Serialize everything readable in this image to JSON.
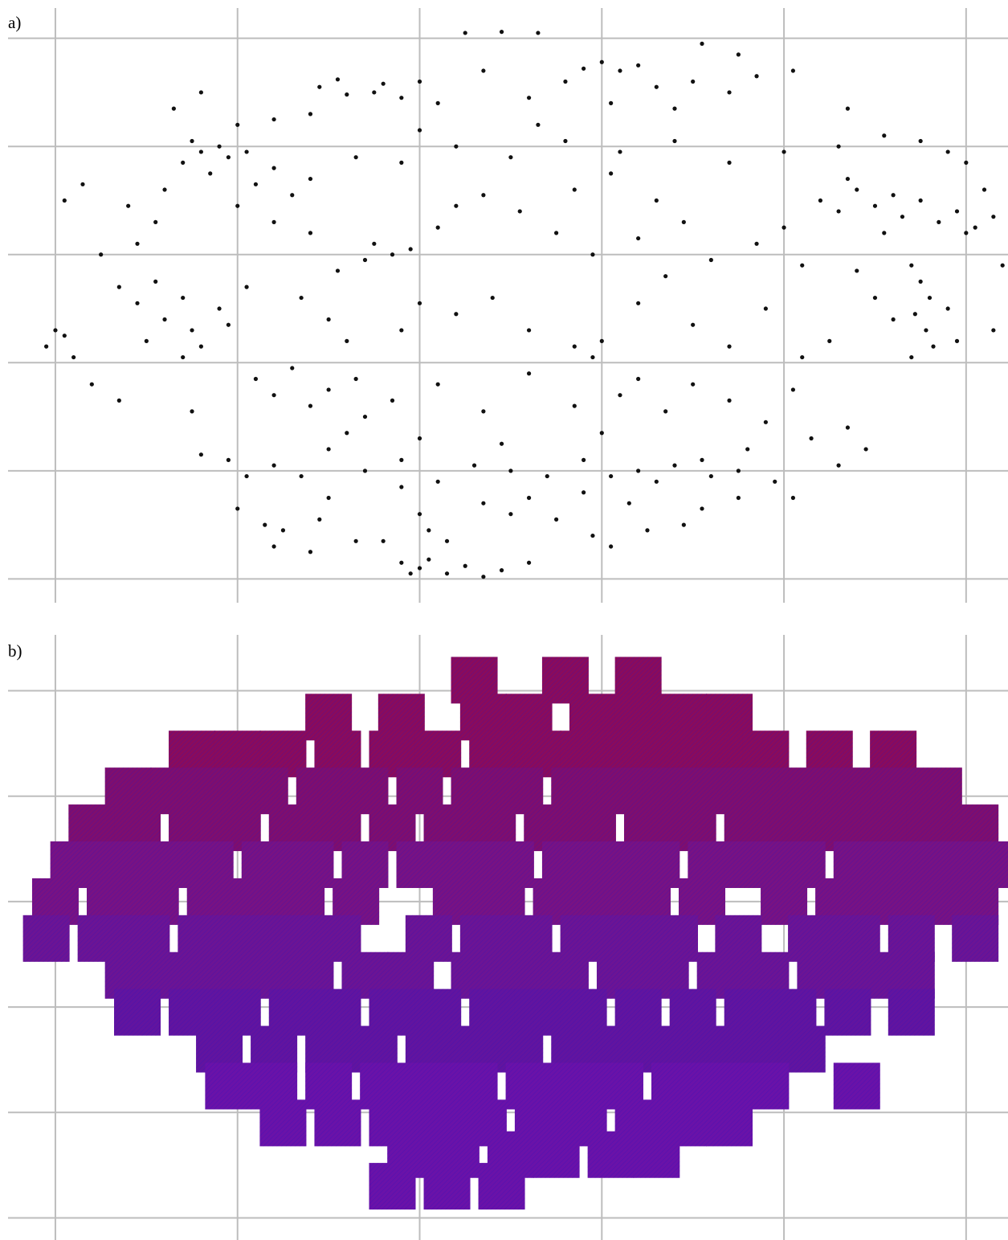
{
  "chart_data": [
    {
      "type": "scatter",
      "label": "a)",
      "color": "#111111",
      "grid": true,
      "xlim": [
        -0.26,
        5.23
      ],
      "ylim": [
        -0.22,
        5.28
      ],
      "xticks": [
        0,
        1,
        2,
        3,
        4,
        5
      ],
      "yticks": [
        0,
        1,
        2,
        3,
        4,
        5
      ],
      "x": [
        2.25,
        2.45,
        2.65,
        1.45,
        1.6,
        1.75,
        1.9,
        2.0,
        1.55,
        1.8,
        2.1,
        2.35,
        2.9,
        3.0,
        3.1,
        3.2,
        2.8,
        3.3,
        3.5,
        3.7,
        2.6,
        3.05,
        3.4,
        3.85,
        0.7,
        0.8,
        0.9,
        0.95,
        1.05,
        0.85,
        1.2,
        1.4,
        0.6,
        1.1,
        0.75,
        1.3,
        1.65,
        1.9,
        2.2,
        2.5,
        2.8,
        3.1,
        3.4,
        3.7,
        4.0,
        4.3,
        2.0,
        2.65,
        4.2,
        4.3,
        4.4,
        4.5,
        4.6,
        4.65,
        4.75,
        4.85,
        4.95,
        5.05,
        4.35,
        4.55,
        0.25,
        0.45,
        0.55,
        0.4,
        1.75,
        1.85,
        1.95,
        1.7,
        2.1,
        2.2,
        2.35,
        2.55,
        2.75,
        2.95,
        3.2,
        3.45,
        3.6,
        3.85,
        4.0,
        4.1,
        3.3,
        2.85,
        3.05,
        1.2,
        0.35,
        0.45,
        0.55,
        0.6,
        0.7,
        0.75,
        0.8,
        0.7,
        0.9,
        0.95,
        0.5,
        1.05,
        4.7,
        4.75,
        4.8,
        4.72,
        4.78,
        4.82,
        4.7,
        4.9,
        4.6,
        4.5,
        4.4,
        4.95,
        1.35,
        1.5,
        2.0,
        2.2,
        2.4,
        2.6,
        2.85,
        2.95,
        3.0,
        3.2,
        3.5,
        3.9,
        -0.05,
        0.05,
        0.1,
        0.0,
        0.2,
        0.35,
        4.25,
        4.1,
        5.0,
        5.15,
        5.2,
        5.15,
        1.1,
        1.2,
        1.3,
        1.4,
        1.5,
        1.65,
        1.7,
        1.85,
        2.1,
        2.35,
        2.6,
        3.1,
        3.35,
        3.5,
        3.7,
        3.9,
        4.15,
        4.3,
        4.35,
        4.45,
        3.2,
        2.85,
        0.8,
        0.75,
        0.95,
        1.05,
        1.2,
        1.35,
        1.5,
        1.7,
        1.9,
        2.1,
        2.3,
        2.5,
        2.7,
        2.9,
        3.05,
        3.2,
        3.3,
        3.4,
        3.55,
        3.6,
        3.75,
        3.8,
        1.6,
        2.0,
        2.45,
        3.0,
        1.0,
        1.15,
        1.25,
        1.65,
        1.8,
        2.05,
        2.15,
        2.5,
        2.35,
        2.75,
        2.95,
        3.25,
        3.45,
        3.55,
        2.0,
        1.45,
        3.15,
        2.6,
        1.9,
        1.5,
        2.9,
        3.75,
        3.95,
        4.05,
        1.9,
        2.0,
        2.05,
        2.15,
        2.25,
        2.35,
        2.45,
        1.95,
        1.4,
        2.6,
        3.05,
        1.2,
        0.05,
        0.15,
        0.65,
        0.8,
        1.0,
        1.2,
        1.4,
        3.55,
        3.75,
        4.05,
        4.35,
        4.55,
        4.75,
        4.9,
        5.0,
        5.1,
        1.0,
        1.4,
        1.55,
        1.6,
        1.9,
        3.35,
        3.7,
        4.05
      ],
      "y": [
        5.05,
        5.06,
        5.05,
        4.55,
        4.48,
        4.5,
        4.45,
        4.6,
        4.62,
        4.58,
        4.4,
        4.7,
        4.72,
        4.78,
        4.7,
        4.75,
        4.6,
        4.55,
        4.6,
        4.5,
        4.45,
        4.4,
        4.35,
        4.65,
        3.85,
        3.95,
        4.0,
        3.9,
        3.95,
        3.75,
        3.8,
        3.7,
        3.6,
        3.65,
        4.05,
        3.55,
        3.9,
        3.85,
        4.0,
        3.9,
        4.05,
        3.95,
        4.05,
        3.85,
        3.95,
        4.0,
        4.15,
        4.2,
        3.5,
        3.4,
        3.6,
        3.45,
        3.55,
        3.35,
        3.5,
        3.3,
        3.4,
        3.25,
        3.7,
        3.2,
        3.0,
        3.1,
        3.3,
        3.45,
        3.1,
        3.0,
        3.05,
        2.95,
        3.25,
        3.45,
        3.55,
        3.4,
        3.2,
        3.0,
        3.15,
        3.3,
        2.95,
        3.1,
        3.25,
        2.9,
        3.5,
        3.6,
        3.75,
        3.3,
        2.7,
        2.55,
        2.75,
        2.4,
        2.6,
        2.3,
        2.15,
        2.05,
        2.5,
        2.35,
        2.2,
        2.7,
        2.9,
        2.75,
        2.6,
        2.45,
        2.3,
        2.15,
        2.05,
        2.5,
        2.4,
        2.6,
        2.85,
        2.2,
        2.6,
        2.4,
        2.55,
        2.45,
        2.6,
        2.3,
        2.15,
        2.05,
        2.2,
        2.55,
        2.35,
        2.5,
        2.15,
        2.25,
        2.05,
        2.3,
        1.8,
        1.65,
        2.2,
        2.05,
        3.2,
        3.35,
        2.9,
        2.3,
        1.85,
        1.7,
        1.95,
        1.6,
        1.75,
        1.85,
        1.5,
        1.65,
        1.8,
        1.55,
        1.9,
        1.7,
        1.55,
        1.8,
        1.65,
        1.45,
        1.3,
        1.05,
        1.4,
        1.2,
        1.85,
        1.6,
        1.15,
        1.55,
        1.1,
        0.95,
        1.05,
        0.95,
        1.2,
        1.0,
        1.1,
        0.9,
        1.05,
        1.0,
        0.95,
        1.1,
        0.95,
        1.0,
        0.9,
        1.05,
        1.1,
        0.95,
        1.0,
        1.2,
        1.35,
        1.3,
        1.25,
        1.35,
        0.65,
        0.5,
        0.45,
        0.35,
        0.35,
        0.45,
        0.35,
        0.6,
        0.7,
        0.55,
        0.4,
        0.45,
        0.5,
        0.65,
        0.6,
        0.55,
        0.7,
        0.75,
        0.85,
        0.75,
        0.8,
        0.75,
        0.9,
        0.75,
        0.15,
        0.1,
        0.18,
        0.05,
        0.12,
        0.02,
        0.08,
        0.05,
        0.25,
        0.15,
        0.3,
        0.3,
        3.5,
        3.65,
        4.35,
        4.5,
        4.2,
        4.25,
        4.3,
        4.95,
        4.85,
        4.7,
        4.35,
        4.1,
        4.05,
        3.95,
        3.85,
        3.6,
        3.45,
        3.2,
        2.85,
        2.2,
        2.3,
        2.8,
        2.15,
        1.75
      ]
    },
    {
      "type": "tiles",
      "label": "b)",
      "grid": true,
      "xlim": [
        -0.26,
        5.23
      ],
      "ylim": [
        -0.21,
        5.53
      ],
      "xticks": [
        0,
        1,
        2,
        3,
        4,
        5
      ],
      "yticks": [
        0,
        1,
        2,
        3,
        4,
        5
      ],
      "series": [
        {
          "color": "#8a0b5c",
          "x": [
            2.3,
            2.8,
            3.2,
            1.5,
            1.9,
            2.35,
            2.6,
            2.95,
            3.2,
            3.45,
            3.7,
            0.75,
            1.0,
            1.25,
            1.55,
            1.85,
            2.1,
            2.4,
            2.65,
            2.9,
            3.15,
            3.4,
            3.65,
            3.9,
            4.25,
            4.6
          ],
          "y": [
            5.1,
            5.1,
            5.1,
            4.75,
            4.75,
            4.75,
            4.75,
            4.75,
            4.75,
            4.75,
            4.75,
            4.4,
            4.4,
            4.4,
            4.4,
            4.4,
            4.4,
            4.4,
            4.4,
            4.4,
            4.4,
            4.4,
            4.4,
            4.4,
            4.4,
            4.4
          ]
        },
        {
          "color": "#7f0e6e",
          "x": [
            0.4,
            0.65,
            0.9,
            1.15,
            1.45,
            1.7,
            2.0,
            2.3,
            2.55,
            2.85,
            3.1,
            3.35,
            3.6,
            3.85,
            4.1,
            4.35,
            4.6,
            4.85,
            0.2,
            0.45,
            0.75,
            1.0,
            1.3,
            1.55,
            1.85,
            2.15,
            2.4,
            2.7,
            2.95,
            3.25,
            3.5,
            3.8,
            4.05,
            4.3,
            4.55,
            4.8,
            5.05
          ],
          "y": [
            4.05,
            4.05,
            4.05,
            4.05,
            4.05,
            4.05,
            4.05,
            4.05,
            4.05,
            4.05,
            4.05,
            4.05,
            4.05,
            4.05,
            4.05,
            4.05,
            4.05,
            4.05,
            3.7,
            3.7,
            3.7,
            3.7,
            3.7,
            3.7,
            3.7,
            3.7,
            3.7,
            3.7,
            3.7,
            3.7,
            3.7,
            3.7,
            3.7,
            3.7,
            3.7,
            3.7,
            3.7
          ]
        },
        {
          "color": "#781283",
          "x": [
            0.1,
            0.35,
            0.6,
            0.85,
            1.15,
            1.4,
            1.7,
            2.0,
            2.25,
            2.5,
            2.8,
            3.05,
            3.3,
            3.6,
            3.85,
            4.1,
            4.4,
            4.65,
            4.9,
            5.15,
            0.0,
            0.3,
            0.55,
            0.85,
            1.1,
            1.35,
            1.65,
            2.2,
            2.45,
            2.75,
            3.0,
            3.25,
            3.55,
            4.0,
            4.3,
            4.55,
            4.8,
            5.05
          ],
          "y": [
            3.35,
            3.35,
            3.35,
            3.35,
            3.35,
            3.35,
            3.35,
            3.35,
            3.35,
            3.35,
            3.35,
            3.35,
            3.35,
            3.35,
            3.35,
            3.35,
            3.35,
            3.35,
            3.35,
            3.35,
            3.0,
            3.0,
            3.0,
            3.0,
            3.0,
            3.0,
            3.0,
            3.0,
            3.0,
            3.0,
            3.0,
            3.0,
            3.0,
            3.0,
            3.0,
            3.0,
            3.0,
            3.0
          ]
        },
        {
          "color": "#6c1494",
          "x": [
            -0.05,
            0.25,
            0.5,
            0.8,
            1.05,
            1.3,
            1.55,
            2.05,
            2.35,
            2.6,
            2.9,
            3.15,
            3.4,
            3.75,
            4.15,
            4.4,
            4.7,
            5.05,
            0.4,
            0.65,
            0.9,
            1.15,
            1.4,
            1.7,
            1.95,
            2.3,
            2.55,
            2.8,
            3.1,
            3.35,
            3.65,
            3.9,
            4.2,
            4.45,
            4.7
          ],
          "y": [
            2.65,
            2.65,
            2.65,
            2.65,
            2.65,
            2.65,
            2.65,
            2.65,
            2.65,
            2.65,
            2.65,
            2.65,
            2.65,
            2.65,
            2.65,
            2.65,
            2.65,
            2.65,
            2.3,
            2.3,
            2.3,
            2.3,
            2.3,
            2.3,
            2.3,
            2.3,
            2.3,
            2.3,
            2.3,
            2.3,
            2.3,
            2.3,
            2.3,
            2.3,
            2.3
          ]
        },
        {
          "color": "#62149f",
          "x": [
            0.45,
            0.75,
            1.0,
            1.3,
            1.55,
            1.85,
            2.1,
            2.4,
            2.65,
            2.9,
            3.2,
            3.5,
            3.8,
            4.05,
            4.35,
            4.7,
            0.9,
            1.2,
            1.5,
            1.75,
            2.05,
            2.3,
            2.55,
            2.85,
            3.1,
            3.35,
            3.6,
            3.85,
            4.1
          ],
          "y": [
            1.95,
            1.95,
            1.95,
            1.95,
            1.95,
            1.95,
            1.95,
            1.95,
            1.95,
            1.95,
            1.95,
            1.95,
            1.95,
            1.95,
            1.95,
            1.95,
            1.6,
            1.6,
            1.6,
            1.6,
            1.6,
            1.6,
            1.6,
            1.6,
            1.6,
            1.6,
            1.6,
            1.6,
            1.6
          ]
        },
        {
          "color": "#6a12a8",
          "x": [
            0.95,
            1.2,
            1.5,
            1.8,
            2.05,
            2.3,
            2.6,
            2.85,
            3.1,
            3.4,
            3.65,
            3.9,
            4.4,
            1.25,
            1.55,
            1.85,
            2.1,
            2.35,
            2.65,
            2.9,
            3.2,
            3.45,
            3.7,
            1.95,
            2.2,
            2.5,
            2.75,
            3.05,
            3.3,
            1.85,
            2.15,
            2.45
          ],
          "y": [
            1.25,
            1.25,
            1.25,
            1.25,
            1.25,
            1.25,
            1.25,
            1.25,
            1.25,
            1.25,
            1.25,
            1.25,
            1.25,
            0.9,
            0.9,
            0.9,
            0.9,
            0.9,
            0.9,
            0.9,
            0.9,
            0.9,
            0.9,
            0.6,
            0.6,
            0.6,
            0.6,
            0.6,
            0.6,
            0.3,
            0.3,
            0.3
          ]
        }
      ]
    }
  ]
}
